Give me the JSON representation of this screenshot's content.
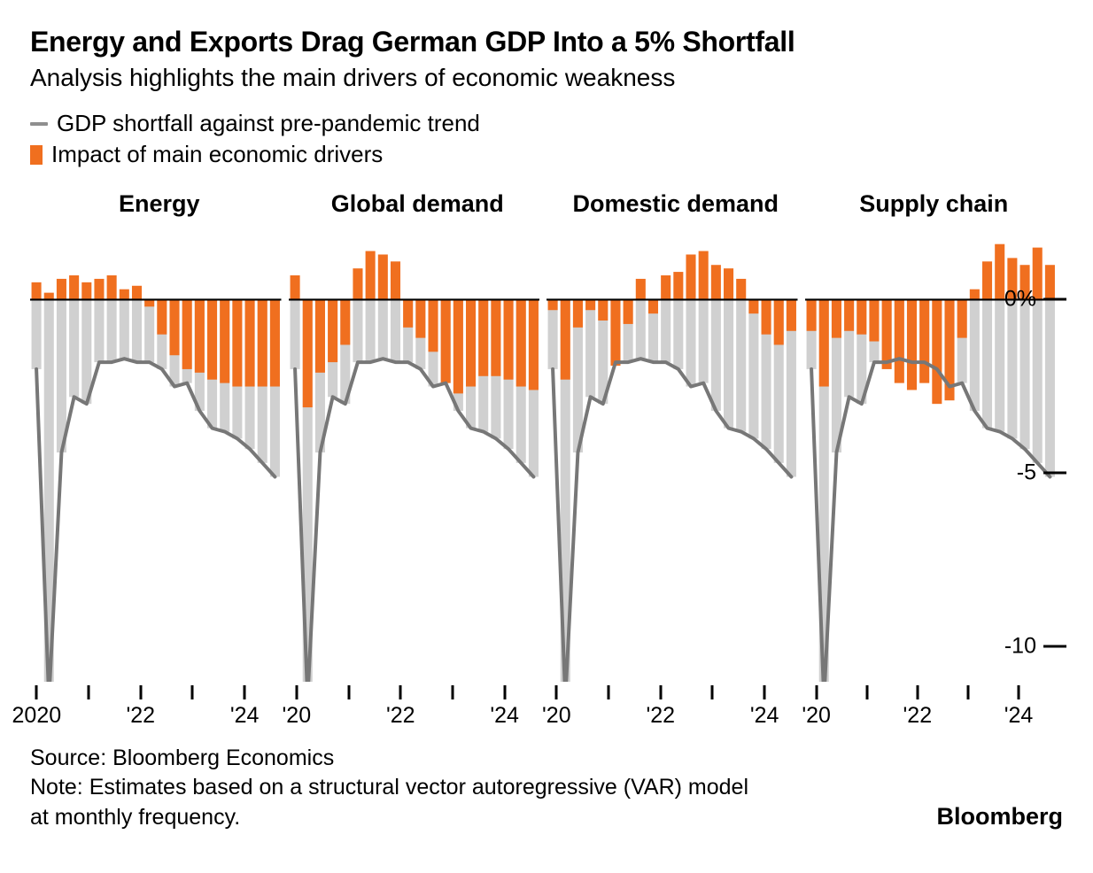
{
  "title": "Energy and Exports Drag German GDP Into a 5% Shortfall",
  "subtitle": "Analysis highlights the main drivers of economic weakness",
  "legend": {
    "line_label": "GDP shortfall against pre-pandemic trend",
    "bar_label": "Impact of main economic drivers",
    "line_color": "#8f8f8f",
    "bar_color": "#f06f1f"
  },
  "chart": {
    "type": "small-multiples-bar-line",
    "ylim": [
      -11,
      2
    ],
    "ytick_values": [
      0,
      -5,
      -10
    ],
    "ytick_labels": [
      "0%",
      "-5",
      "-10"
    ],
    "background_color": "#ffffff",
    "zero_line_color": "#000000",
    "gdp_line_color": "#777777",
    "gdp_line_width": 4,
    "grey_bar_color": "#d0d0d0",
    "orange_bar_color": "#f06f1f",
    "bar_gap_ratio": 0.22,
    "gdp_line": [
      -2.0,
      -11.5,
      -4.4,
      -2.8,
      -3.0,
      -1.8,
      -1.8,
      -1.7,
      -1.8,
      -1.8,
      -2.0,
      -2.5,
      -2.4,
      -3.2,
      -3.7,
      -3.8,
      -4.0,
      -4.3,
      -4.7,
      -5.1
    ],
    "x_ticks": [
      {
        "pos": 0,
        "label": "2020",
        "label_first_panel": "2020",
        "label_other_panels": "'20"
      },
      {
        "pos": 4,
        "label": null
      },
      {
        "pos": 8,
        "label": "'22"
      },
      {
        "pos": 12,
        "label": null
      },
      {
        "pos": 16,
        "label": "'24"
      }
    ],
    "panels": [
      {
        "title": "Energy",
        "orange": [
          0.5,
          0.2,
          0.6,
          0.7,
          0.5,
          0.6,
          0.7,
          0.3,
          0.4,
          -0.2,
          -1.0,
          -1.6,
          -2.0,
          -2.1,
          -2.3,
          -2.4,
          -2.5,
          -2.5,
          -2.5,
          -2.5
        ]
      },
      {
        "title": "Global demand",
        "orange": [
          0.7,
          -3.1,
          -2.1,
          -1.8,
          -1.3,
          0.9,
          1.4,
          1.3,
          1.1,
          -0.8,
          -1.1,
          -1.5,
          -2.4,
          -2.7,
          -2.5,
          -2.2,
          -2.2,
          -2.3,
          -2.5,
          -2.6
        ]
      },
      {
        "title": "Domestic demand",
        "orange": [
          -0.3,
          -2.3,
          -0.8,
          -0.3,
          -0.6,
          -1.9,
          -0.7,
          0.6,
          -0.4,
          0.7,
          0.8,
          1.3,
          1.4,
          1.0,
          0.9,
          0.6,
          -0.4,
          -1.0,
          -1.3,
          -0.9
        ]
      },
      {
        "title": "Supply chain",
        "orange": [
          -0.9,
          -2.5,
          -1.1,
          -0.9,
          -1.0,
          -1.2,
          -2.0,
          -2.4,
          -2.6,
          -2.4,
          -3.0,
          -2.9,
          -1.1,
          0.3,
          1.1,
          1.6,
          1.2,
          1.0,
          1.5,
          1.0
        ]
      }
    ]
  },
  "footer": {
    "source": "Source: Bloomberg Economics",
    "note": "Note: Estimates based on a structural vector autoregressive (VAR) model at monthly frequency.",
    "brand": "Bloomberg"
  }
}
